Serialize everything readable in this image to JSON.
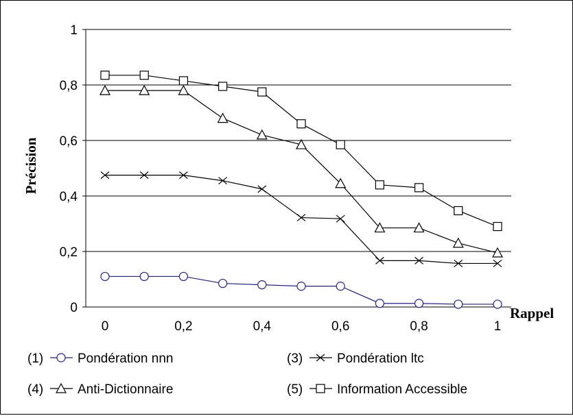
{
  "chart_data": {
    "type": "line",
    "xlabel": "Rappel",
    "ylabel": "Précision",
    "xlim": [
      0,
      1
    ],
    "ylim": [
      0,
      1
    ],
    "grid": "horizontal",
    "legend_position": "bottom",
    "x_ticks": [
      {
        "value": 0,
        "label": "0"
      },
      {
        "value": 0.2,
        "label": "0,2"
      },
      {
        "value": 0.4,
        "label": "0,4"
      },
      {
        "value": 0.6,
        "label": "0,6"
      },
      {
        "value": 0.8,
        "label": "0,8"
      },
      {
        "value": 1,
        "label": "1"
      }
    ],
    "y_ticks": [
      {
        "value": 0,
        "label": "0"
      },
      {
        "value": 0.2,
        "label": "0,2"
      },
      {
        "value": 0.4,
        "label": "0,4"
      },
      {
        "value": 0.6,
        "label": "0,6"
      },
      {
        "value": 0.8,
        "label": "0,8"
      },
      {
        "value": 1,
        "label": "1"
      }
    ],
    "x": [
      0,
      0.1,
      0.2,
      0.3,
      0.4,
      0.5,
      0.6,
      0.7,
      0.8,
      0.9,
      1.0
    ],
    "series": [
      {
        "name": "(1)",
        "label": "Pondération nnn",
        "marker": "circle",
        "color": "#1f1fa0",
        "values": [
          0.11,
          0.11,
          0.11,
          0.085,
          0.08,
          0.075,
          0.075,
          0.013,
          0.013,
          0.01,
          0.01
        ]
      },
      {
        "name": "(3)",
        "label": "Pondération ltc",
        "marker": "x",
        "color": "#000000",
        "values": [
          0.475,
          0.475,
          0.475,
          0.455,
          0.425,
          0.322,
          0.318,
          0.167,
          0.167,
          0.157,
          0.157
        ]
      },
      {
        "name": "(4)",
        "label": "Anti-Dictionnaire",
        "marker": "triangle",
        "color": "#000000",
        "values": [
          0.78,
          0.78,
          0.78,
          0.68,
          0.62,
          0.585,
          0.445,
          0.285,
          0.285,
          0.23,
          0.195
        ]
      },
      {
        "name": "(5)",
        "label": "Information Accessible",
        "marker": "square",
        "color": "#000000",
        "values": [
          0.835,
          0.835,
          0.815,
          0.795,
          0.775,
          0.66,
          0.585,
          0.44,
          0.43,
          0.347,
          0.29
        ]
      }
    ],
    "legend_layout": [
      [
        0,
        1
      ],
      [
        2,
        3
      ]
    ]
  }
}
